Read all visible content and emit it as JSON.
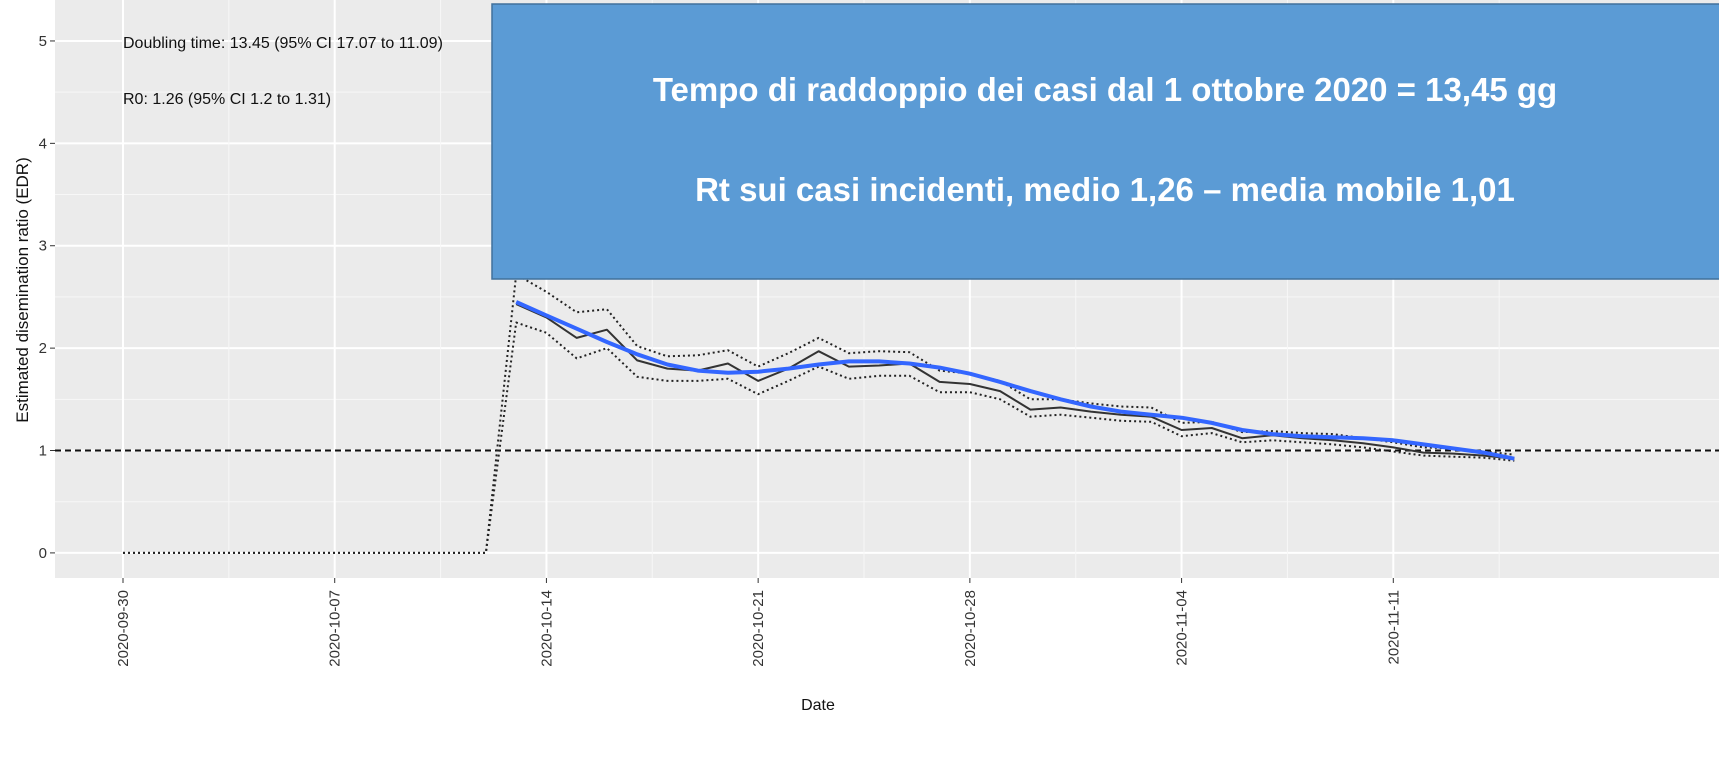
{
  "chart_data": {
    "type": "line",
    "y_label": "Estimated disemination ratio (EDR)",
    "x_label": "Date",
    "annotations": [
      "Doubling time: 13.45 (95% CI 17.07 to 11.09)",
      "R0: 1.26 (95% CI 1.2 to 1.31)"
    ],
    "hline": 1,
    "xlim": [
      "2020-09-28",
      "2020-11-22"
    ],
    "xticks": [
      "2020-09-30",
      "2020-10-07",
      "2020-10-14",
      "2020-10-21",
      "2020-10-28",
      "2020-11-04",
      "2020-11-11"
    ],
    "ylim": [
      -0.25,
      5.4
    ],
    "yticks": [
      0,
      1,
      2,
      3,
      4,
      5
    ],
    "grid": true,
    "x": [
      "2020-09-30",
      "2020-10-01",
      "2020-10-02",
      "2020-10-03",
      "2020-10-04",
      "2020-10-05",
      "2020-10-06",
      "2020-10-07",
      "2020-10-08",
      "2020-10-09",
      "2020-10-10",
      "2020-10-11",
      "2020-10-12",
      "2020-10-13",
      "2020-10-14",
      "2020-10-15",
      "2020-10-16",
      "2020-10-17",
      "2020-10-18",
      "2020-10-19",
      "2020-10-20",
      "2020-10-21",
      "2020-10-22",
      "2020-10-23",
      "2020-10-24",
      "2020-10-25",
      "2020-10-26",
      "2020-10-27",
      "2020-10-28",
      "2020-10-29",
      "2020-10-30",
      "2020-10-31",
      "2020-11-01",
      "2020-11-02",
      "2020-11-03",
      "2020-11-04",
      "2020-11-05",
      "2020-11-06",
      "2020-11-07",
      "2020-11-08",
      "2020-11-09",
      "2020-11-10",
      "2020-11-11",
      "2020-11-12",
      "2020-11-13",
      "2020-11-14",
      "2020-11-15"
    ],
    "series": [
      {
        "color": "#222222",
        "dash": "dotted",
        "values": [
          0,
          0,
          0,
          0,
          0,
          0,
          0,
          0,
          0,
          0,
          0,
          0,
          0,
          2.72,
          2.55,
          2.35,
          2.38,
          2.02,
          1.92,
          1.93,
          1.98,
          1.82,
          1.95,
          2.1,
          1.95,
          1.97,
          1.96,
          1.78,
          1.75,
          1.68,
          1.5,
          1.5,
          1.46,
          1.43,
          1.42,
          1.27,
          1.28,
          1.18,
          1.19,
          1.17,
          1.16,
          1.12,
          1.08,
          1.03,
          1.02,
          0.99,
          0.96
        ]
      },
      {
        "color": "#222222",
        "dash": "dotted",
        "values": [
          0,
          0,
          0,
          0,
          0,
          0,
          0,
          0,
          0,
          0,
          0,
          0,
          0,
          2.25,
          2.15,
          1.9,
          2.0,
          1.72,
          1.68,
          1.68,
          1.7,
          1.55,
          1.68,
          1.82,
          1.7,
          1.73,
          1.73,
          1.57,
          1.57,
          1.5,
          1.33,
          1.35,
          1.32,
          1.29,
          1.28,
          1.14,
          1.17,
          1.08,
          1.1,
          1.08,
          1.06,
          1.03,
          0.99,
          0.95,
          0.94,
          0.93,
          0.9
        ]
      },
      {
        "color": "#333333",
        "dash": "solid",
        "values": [
          null,
          null,
          null,
          null,
          null,
          null,
          null,
          null,
          null,
          null,
          null,
          null,
          null,
          2.43,
          2.3,
          2.1,
          2.18,
          1.88,
          1.8,
          1.78,
          1.85,
          1.68,
          1.8,
          1.97,
          1.82,
          1.83,
          1.85,
          1.67,
          1.65,
          1.58,
          1.4,
          1.42,
          1.38,
          1.35,
          1.33,
          1.2,
          1.22,
          1.12,
          1.15,
          1.12,
          1.1,
          1.07,
          1.03,
          0.98,
          0.97,
          0.95,
          0.92
        ]
      },
      {
        "color": "#3366ff",
        "dash": "thick",
        "values": [
          null,
          null,
          null,
          null,
          null,
          null,
          null,
          null,
          null,
          null,
          null,
          null,
          null,
          2.45,
          2.32,
          2.19,
          2.06,
          1.94,
          1.84,
          1.78,
          1.76,
          1.77,
          1.8,
          1.84,
          1.87,
          1.87,
          1.85,
          1.81,
          1.75,
          1.67,
          1.58,
          1.5,
          1.43,
          1.38,
          1.35,
          1.32,
          1.27,
          1.2,
          1.16,
          1.14,
          1.13,
          1.12,
          1.1,
          1.06,
          1.02,
          0.98,
          0.92
        ]
      }
    ]
  },
  "callout": {
    "lines": [
      "Tempo di raddoppio dei casi dal 1 ottobre 2020 = 13,45 gg",
      "Rt sui casi incidenti, medio 1,26 – media mobile 1,01"
    ]
  }
}
